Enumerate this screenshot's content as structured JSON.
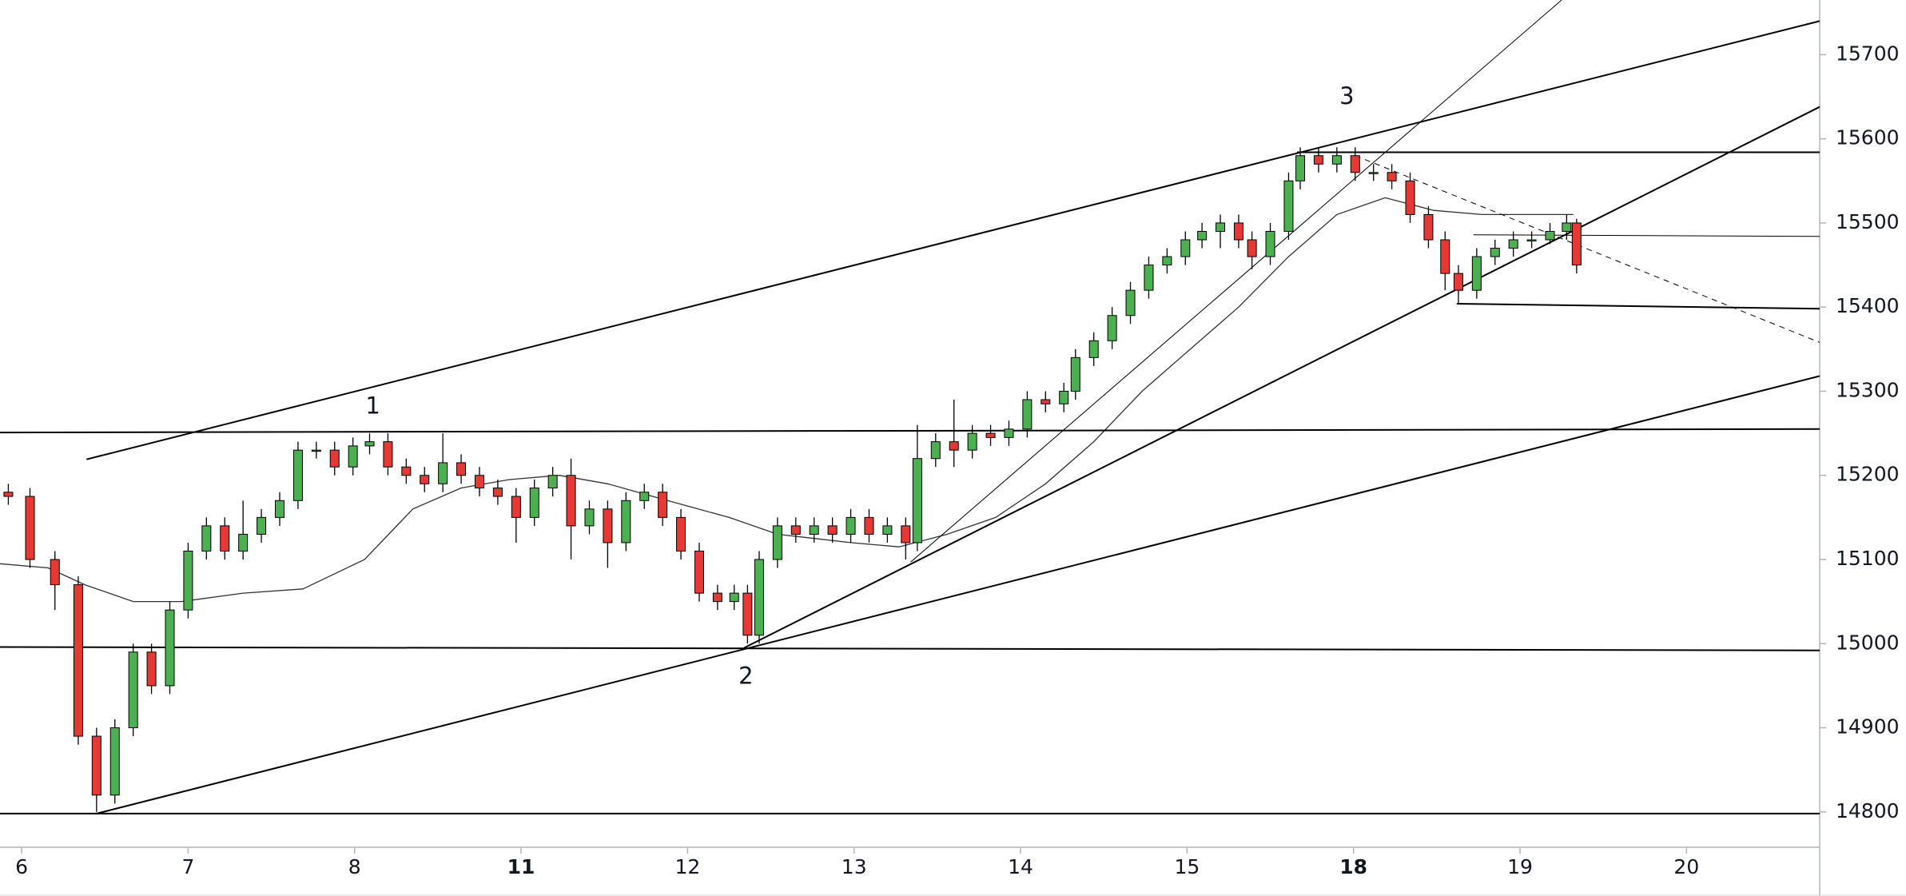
{
  "chart_data": {
    "type": "candlestick",
    "x": [
      -0.08,
      0.05,
      0.2,
      0.34,
      0.45,
      0.56,
      0.67,
      0.78,
      0.89,
      1.0,
      1.11,
      1.22,
      1.33,
      1.44,
      1.55,
      1.66,
      1.77,
      1.88,
      1.99,
      2.09,
      2.2,
      2.31,
      2.42,
      2.53,
      2.64,
      2.75,
      2.86,
      2.97,
      3.08,
      3.19,
      3.3,
      3.41,
      3.52,
      3.63,
      3.74,
      3.85,
      3.96,
      4.07,
      4.18,
      4.28,
      4.36,
      4.43,
      4.54,
      4.65,
      4.76,
      4.87,
      4.98,
      5.09,
      5.2,
      5.31,
      5.38,
      5.49,
      5.6,
      5.71,
      5.82,
      5.93,
      6.04,
      6.15,
      6.26,
      6.33,
      6.44,
      6.55,
      6.66,
      6.77,
      6.88,
      6.99,
      7.09,
      7.2,
      7.31,
      7.39,
      7.5,
      7.61,
      7.68,
      7.79,
      7.9,
      8.01,
      8.12,
      8.23,
      8.34,
      8.45,
      8.55,
      8.63,
      8.74,
      8.85,
      8.96,
      9.07,
      9.18,
      9.28,
      9.34
    ],
    "open": [
      15180,
      15175,
      15100,
      15070,
      14890,
      14820,
      14900,
      14990,
      14950,
      15040,
      15110,
      15140,
      15110,
      15130,
      15150,
      15170,
      15230,
      15230,
      15210,
      15235,
      15240,
      15210,
      15200,
      15190,
      15215,
      15200,
      15185,
      15175,
      15150,
      15185,
      15200,
      15140,
      15160,
      15120,
      15170,
      15180,
      15150,
      15110,
      15060,
      15050,
      15060,
      15010,
      15100,
      15140,
      15130,
      15140,
      15130,
      15150,
      15130,
      15140,
      15120,
      15220,
      15240,
      15230,
      15250,
      15245,
      15255,
      15290,
      15285,
      15300,
      15340,
      15360,
      15390,
      15420,
      15450,
      15460,
      15480,
      15490,
      15500,
      15480,
      15460,
      15490,
      15550,
      15580,
      15570,
      15580,
      15560,
      15560,
      15550,
      15510,
      15480,
      15440,
      15420,
      15460,
      15470,
      15480,
      15480,
      15490,
      15500
    ],
    "high": [
      15190,
      15185,
      15110,
      15080,
      14900,
      14910,
      15000,
      15000,
      15050,
      15120,
      15150,
      15150,
      15170,
      15160,
      15180,
      15240,
      15240,
      15240,
      15245,
      15250,
      15250,
      15220,
      15210,
      15250,
      15225,
      15210,
      15195,
      15185,
      15195,
      15210,
      15220,
      15170,
      15170,
      15180,
      15190,
      15190,
      15160,
      15120,
      15070,
      15070,
      15070,
      15110,
      15150,
      15150,
      15150,
      15150,
      15160,
      15160,
      15150,
      15150,
      15260,
      15250,
      15290,
      15260,
      15260,
      15265,
      15300,
      15300,
      15310,
      15350,
      15370,
      15400,
      15430,
      15460,
      15470,
      15490,
      15500,
      15510,
      15510,
      15490,
      15500,
      15560,
      15590,
      15590,
      15590,
      15590,
      15570,
      15570,
      15560,
      15520,
      15490,
      15450,
      15470,
      15480,
      15490,
      15490,
      15500,
      15510,
      15505
    ],
    "low": [
      15165,
      15090,
      15040,
      14880,
      14800,
      14810,
      14890,
      14940,
      14940,
      15030,
      15100,
      15100,
      15100,
      15120,
      15140,
      15160,
      15220,
      15200,
      15200,
      15225,
      15200,
      15190,
      15180,
      15180,
      15190,
      15175,
      15165,
      15120,
      15140,
      15175,
      15100,
      15130,
      15090,
      15110,
      15160,
      15140,
      15100,
      15050,
      15040,
      15040,
      15000,
      15000,
      15090,
      15120,
      15120,
      15120,
      15120,
      15120,
      15120,
      15100,
      15110,
      15210,
      15210,
      15220,
      15235,
      15235,
      15245,
      15275,
      15275,
      15290,
      15330,
      15350,
      15380,
      15410,
      15440,
      15450,
      15470,
      15470,
      15470,
      15445,
      15450,
      15480,
      15540,
      15560,
      15560,
      15550,
      15550,
      15540,
      15500,
      15470,
      15420,
      15405,
      15410,
      15450,
      15460,
      15470,
      15475,
      15480,
      15440
    ],
    "close": [
      15175,
      15100,
      15070,
      14890,
      14820,
      14900,
      14990,
      14950,
      15040,
      15110,
      15140,
      15110,
      15130,
      15150,
      15170,
      15230,
      15230,
      15210,
      15235,
      15240,
      15210,
      15200,
      15190,
      15215,
      15200,
      15185,
      15175,
      15150,
      15185,
      15200,
      15140,
      15160,
      15120,
      15170,
      15180,
      15150,
      15110,
      15060,
      15050,
      15060,
      15010,
      15100,
      15140,
      15130,
      15140,
      15130,
      15150,
      15130,
      15140,
      15120,
      15220,
      15240,
      15230,
      15250,
      15245,
      15255,
      15290,
      15285,
      15300,
      15340,
      15360,
      15390,
      15420,
      15450,
      15460,
      15480,
      15490,
      15500,
      15480,
      15460,
      15490,
      15550,
      15580,
      15570,
      15580,
      15560,
      15560,
      15550,
      15510,
      15480,
      15440,
      15420,
      15460,
      15470,
      15480,
      15480,
      15490,
      15500,
      15450
    ],
    "up_color": "#4caf50",
    "down_color": "#e53935",
    "xlim": [
      -0.13,
      10.8
    ],
    "xticks": [
      {
        "value": 0,
        "label": "6"
      },
      {
        "value": 1,
        "label": "7"
      },
      {
        "value": 2,
        "label": "8"
      },
      {
        "value": 3,
        "label": "11",
        "bold": true
      },
      {
        "value": 4,
        "label": "12"
      },
      {
        "value": 5,
        "label": "13"
      },
      {
        "value": 6,
        "label": "14"
      },
      {
        "value": 7,
        "label": "15"
      },
      {
        "value": 8,
        "label": "18",
        "bold": true
      },
      {
        "value": 9,
        "label": "19"
      },
      {
        "value": 10,
        "label": "20"
      }
    ],
    "ylim": [
      14758,
      15765
    ],
    "yticks": [
      14800,
      14900,
      15000,
      15100,
      15200,
      15300,
      15400,
      15500,
      15600,
      15700
    ],
    "moving_average": {
      "x": [
        -0.13,
        0.16,
        0.38,
        0.67,
        0.96,
        1.33,
        1.69,
        2.06,
        2.35,
        2.64,
        2.93,
        3.23,
        3.52,
        3.88,
        4.25,
        4.54,
        4.98,
        5.27,
        5.56,
        5.85,
        6.15,
        6.44,
        6.73,
        7.02,
        7.31,
        7.61,
        7.9,
        8.19,
        8.48,
        8.77,
        9.07,
        9.32
      ],
      "values": [
        15095,
        15090,
        15070,
        15050,
        15050,
        15060,
        15065,
        15100,
        15160,
        15185,
        15195,
        15200,
        15190,
        15170,
        15150,
        15130,
        15120,
        15115,
        15130,
        15150,
        15190,
        15240,
        15300,
        15350,
        15400,
        15460,
        15510,
        15530,
        15515,
        15510,
        15510,
        15510
      ],
      "color": "#333333"
    },
    "trendlines": [
      {
        "x": [
          0.39,
          10.8
        ],
        "y": [
          15219,
          15740
        ],
        "style": "solid",
        "width": 2
      },
      {
        "x": [
          -0.13,
          10.8
        ],
        "y": [
          15251,
          15255
        ],
        "style": "solid",
        "width": 2
      },
      {
        "x": [
          -0.13,
          10.8
        ],
        "y": [
          14996,
          14992
        ],
        "style": "solid",
        "width": 2
      },
      {
        "x": [
          -0.13,
          10.8
        ],
        "y": [
          14798,
          14798
        ],
        "style": "solid",
        "width": 2
      },
      {
        "x": [
          0.45,
          10.8
        ],
        "y": [
          14798,
          15318
        ],
        "style": "solid",
        "width": 2
      },
      {
        "x": [
          4.34,
          10.8
        ],
        "y": [
          14995,
          15638
        ],
        "style": "solid",
        "width": 2
      },
      {
        "x": [
          5.34,
          9.25
        ],
        "y": [
          15097,
          15765
        ],
        "style": "solid",
        "width": 1
      },
      {
        "x": [
          7.66,
          10.8
        ],
        "y": [
          15584,
          15584
        ],
        "style": "solid",
        "width": 2
      },
      {
        "x": [
          8.72,
          10.8
        ],
        "y": [
          15486,
          15484
        ],
        "style": "solid",
        "width": 1
      },
      {
        "x": [
          8.62,
          10.8
        ],
        "y": [
          15404,
          15398
        ],
        "style": "solid",
        "width": 2
      },
      {
        "x": [
          8.01,
          10.8
        ],
        "y": [
          15580,
          15358
        ],
        "style": "dashed",
        "width": 1
      }
    ],
    "annotations": [
      {
        "text": "1",
        "x": 2.11,
        "y": 15281
      },
      {
        "text": "2",
        "x": 4.35,
        "y": 14960
      },
      {
        "text": "3",
        "x": 7.96,
        "y": 15649
      }
    ]
  }
}
